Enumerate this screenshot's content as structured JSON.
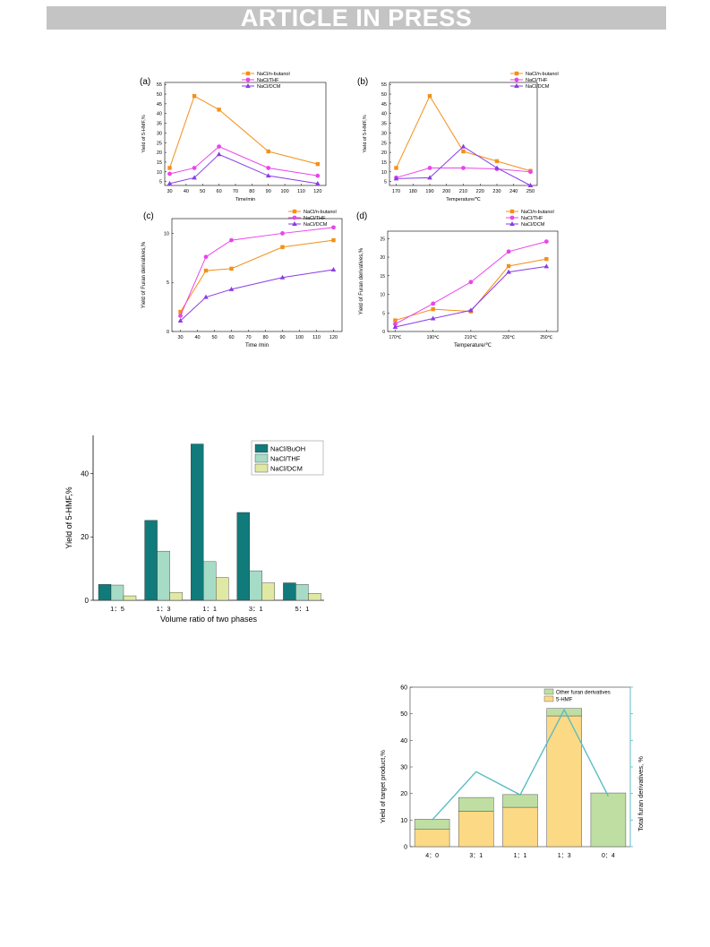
{
  "banner": {
    "text": "ARTICLE IN PRESS"
  },
  "chart_data": [
    {
      "id": "a",
      "panel_label": "(a)",
      "type": "line",
      "xlabel": "Time/min",
      "ylabel": "Yield of 5-HMF,%",
      "x": [
        30,
        45,
        60,
        90,
        120
      ],
      "xticks": [
        "30",
        "40",
        "50",
        "60",
        "70",
        "80",
        "90",
        "100",
        "110",
        "120"
      ],
      "yticks": [
        "5",
        "10",
        "15",
        "20",
        "25",
        "30",
        "35",
        "40",
        "45",
        "50",
        "55"
      ],
      "xlim": [
        27,
        125
      ],
      "ylim": [
        3,
        56
      ],
      "legend_position": "top-right",
      "series": [
        {
          "name": "NaCl/n-butanol",
          "color": "#f39019",
          "marker": "square",
          "values": [
            12,
            49,
            42,
            20.5,
            14
          ]
        },
        {
          "name": "NaCl/THF",
          "color": "#ea45ea",
          "marker": "circle",
          "values": [
            9,
            12,
            23,
            12,
            8
          ]
        },
        {
          "name": "NaCl/DCM",
          "color": "#8a3ce6",
          "marker": "triangle",
          "values": [
            4,
            7,
            19,
            8,
            4
          ]
        }
      ]
    },
    {
      "id": "b",
      "panel_label": "(b)",
      "type": "line",
      "xlabel": "Temperature/℃",
      "ylabel": "Yield of 5-HMF,%",
      "x": [
        170,
        190,
        210,
        230,
        250
      ],
      "xticks": [
        "170",
        "180",
        "190",
        "200",
        "210",
        "220",
        "230",
        "240",
        "250"
      ],
      "yticks": [
        "5",
        "10",
        "15",
        "20",
        "25",
        "30",
        "35",
        "40",
        "45",
        "50",
        "55"
      ],
      "xlim": [
        166,
        254
      ],
      "ylim": [
        3,
        56
      ],
      "legend_position": "top-right",
      "series": [
        {
          "name": "NaCl/n-butanol",
          "color": "#f39019",
          "marker": "square",
          "values": [
            12,
            49,
            20.5,
            15.5,
            10.5
          ]
        },
        {
          "name": "NaCl/THF",
          "color": "#ea45ea",
          "marker": "circle",
          "values": [
            7,
            12,
            12,
            11.5,
            10
          ]
        },
        {
          "name": "NaCl/DCM",
          "color": "#8a3ce6",
          "marker": "triangle",
          "values": [
            6.5,
            7,
            23,
            12,
            3
          ]
        }
      ]
    },
    {
      "id": "c",
      "panel_label": "(c)",
      "type": "line",
      "xlabel": "Time /min",
      "ylabel": "Yield of Furan derivatives,%",
      "x": [
        30,
        45,
        60,
        90,
        120
      ],
      "xticks": [
        "30",
        "40",
        "50",
        "60",
        "70",
        "80",
        "90",
        "100",
        "110",
        "120"
      ],
      "yticks": [
        "0",
        "5",
        "10"
      ],
      "xlim": [
        25,
        125
      ],
      "ylim": [
        0,
        11.5
      ],
      "legend_position": "top-right",
      "series": [
        {
          "name": "NaCl/n-butanol",
          "color": "#f39019",
          "marker": "square",
          "values": [
            2,
            6.2,
            6.4,
            8.6,
            9.3
          ]
        },
        {
          "name": "NaCl/THF",
          "color": "#ea45ea",
          "marker": "circle",
          "values": [
            1.6,
            7.6,
            9.3,
            10,
            10.6
          ]
        },
        {
          "name": "NaCl/DCM",
          "color": "#8a3ce6",
          "marker": "triangle",
          "values": [
            1.1,
            3.5,
            4.3,
            5.5,
            6.3
          ]
        }
      ]
    },
    {
      "id": "d",
      "panel_label": "(d)",
      "type": "line",
      "xlabel": "Temperature/℃",
      "ylabel": "Yield of Furan derivatives,%",
      "x": [
        170,
        190,
        210,
        230,
        250
      ],
      "xticks": [
        "170℃",
        "190℃",
        "210℃",
        "230℃",
        "250℃"
      ],
      "yticks": [
        "0",
        "5",
        "10",
        "15",
        "20",
        "25"
      ],
      "xlim": [
        166,
        256
      ],
      "ylim": [
        0,
        27
      ],
      "legend_position": "top-right",
      "series": [
        {
          "name": "NaCl/n-butanol",
          "color": "#f39019",
          "marker": "square",
          "values": [
            3,
            6,
            5.4,
            17.6,
            19.5
          ]
        },
        {
          "name": "NaCl/THF",
          "color": "#ea45ea",
          "marker": "circle",
          "values": [
            2,
            7.5,
            13.3,
            21.5,
            24.2
          ]
        },
        {
          "name": "NaCl/DCM",
          "color": "#8a3ce6",
          "marker": "triangle",
          "values": [
            1.2,
            3.5,
            5.7,
            16,
            17.5
          ]
        }
      ]
    },
    {
      "id": "e",
      "type": "bar",
      "xlabel": "Volume ratio of two phases",
      "ylabel": "Yield of 5-HMF,%",
      "categories": [
        "1：5",
        "1：3",
        "1：1",
        "3：1",
        "5：1"
      ],
      "yticks": [
        "0",
        "20",
        "40"
      ],
      "ylim": [
        0,
        52
      ],
      "legend_position": "top-right",
      "series": [
        {
          "name": "NaCl/BuOH",
          "color": "#117a7a",
          "values": [
            5,
            25.2,
            49.3,
            27.7,
            5.5
          ]
        },
        {
          "name": "NaCl/THF",
          "color": "#a6dcc6",
          "values": [
            4.8,
            15.5,
            12.2,
            9.3,
            5
          ]
        },
        {
          "name": "NaCl/DCM",
          "color": "#e0e9a4",
          "values": [
            1.4,
            2.5,
            7.2,
            5.5,
            2.2
          ]
        }
      ]
    },
    {
      "id": "f",
      "type": "bar",
      "stacked": true,
      "ylabel": "Yield of target product,%",
      "y2label": "Total furan derivatives, %",
      "categories": [
        "4：0",
        "3：1",
        "1：1",
        "1：3",
        "0：4"
      ],
      "yticks": [
        "0",
        "10",
        "20",
        "30",
        "40",
        "50",
        "60"
      ],
      "ylim": [
        0,
        60
      ],
      "legend_position": "top-right",
      "series": [
        {
          "name": "5-HMF",
          "color": "#fcd985",
          "values": [
            6.5,
            13.3,
            14.8,
            49.2,
            0
          ]
        },
        {
          "name": "Other furan derivatives",
          "color": "#bfdfa2",
          "values": [
            3.8,
            5.2,
            4.8,
            2.8,
            20.2
          ]
        }
      ],
      "line_series": {
        "color": "#5bbcc4",
        "values": [
          10,
          28.2,
          19.5,
          51.5,
          19
        ]
      }
    }
  ]
}
